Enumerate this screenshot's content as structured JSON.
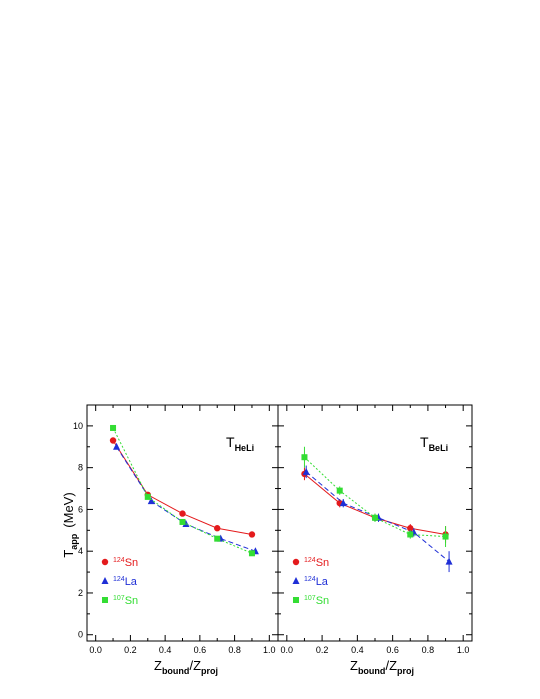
{
  "chart_data": [
    {
      "type": "line",
      "panel_label": {
        "main": "T",
        "sub": "HeLi"
      },
      "xlabel": {
        "main_a": "Z",
        "sub_a": "bound",
        "sep": "/",
        "main_b": "Z",
        "sub_b": "proj"
      },
      "ylabel": {
        "main": "T",
        "sub": "app",
        "rest": "(MeV)"
      },
      "xlim": [
        -0.05,
        1.05
      ],
      "ylim": [
        -0.3,
        11
      ],
      "xticks": [
        "0.0",
        "0.2",
        "0.4",
        "0.6",
        "0.8",
        "1.0"
      ],
      "yticks": [
        "0",
        "2",
        "4",
        "6",
        "8",
        "10"
      ],
      "series": [
        {
          "name_sup": "124",
          "name": "Sn",
          "color": "#e41a1c",
          "marker": "circle",
          "dash": "solid",
          "x": [
            0.1,
            0.3,
            0.5,
            0.7,
            0.9
          ],
          "y": [
            9.3,
            6.7,
            5.8,
            5.1,
            4.8
          ],
          "err": [
            0,
            0,
            0,
            0,
            0
          ]
        },
        {
          "name_sup": "124",
          "name": "La",
          "color": "#1f2fd6",
          "marker": "triangle",
          "dash": "dashed",
          "x": [
            0.12,
            0.32,
            0.52,
            0.72,
            0.92
          ],
          "y": [
            9.0,
            6.4,
            5.3,
            4.6,
            4.0
          ],
          "err": [
            0,
            0,
            0,
            0,
            0
          ]
        },
        {
          "name_sup": "107",
          "name": "Sn",
          "color": "#33dd33",
          "marker": "square",
          "dash": "dotted",
          "x": [
            0.1,
            0.3,
            0.5,
            0.7,
            0.9
          ],
          "y": [
            9.9,
            6.6,
            5.4,
            4.6,
            3.9
          ],
          "err": [
            0,
            0,
            0,
            0,
            0
          ]
        }
      ]
    },
    {
      "type": "line",
      "panel_label": {
        "main": "T",
        "sub": "BeLi"
      },
      "xlabel": {
        "main_a": "Z",
        "sub_a": "bound",
        "sep": "/",
        "main_b": "Z",
        "sub_b": "proj"
      },
      "xlim": [
        -0.05,
        1.05
      ],
      "ylim": [
        -0.3,
        11
      ],
      "xticks": [
        "0.0",
        "0.2",
        "0.4",
        "0.6",
        "0.8",
        "1.0"
      ],
      "series": [
        {
          "name_sup": "124",
          "name": "Sn",
          "color": "#e41a1c",
          "marker": "circle",
          "dash": "solid",
          "x": [
            0.1,
            0.3,
            0.5,
            0.7,
            0.9
          ],
          "y": [
            7.7,
            6.3,
            5.6,
            5.1,
            4.8
          ],
          "err": [
            0.3,
            0.2,
            0.2,
            0.2,
            0.4
          ]
        },
        {
          "name_sup": "124",
          "name": "La",
          "color": "#1f2fd6",
          "marker": "triangle",
          "dash": "dashed",
          "x": [
            0.11,
            0.32,
            0.52,
            0.72,
            0.92
          ],
          "y": [
            7.8,
            6.3,
            5.6,
            4.9,
            3.5
          ],
          "err": [
            0.3,
            0.2,
            0.2,
            0.2,
            0.5
          ]
        },
        {
          "name_sup": "107",
          "name": "Sn",
          "color": "#33dd33",
          "marker": "square",
          "dash": "dotted",
          "x": [
            0.1,
            0.3,
            0.5,
            0.7,
            0.9
          ],
          "y": [
            8.5,
            6.9,
            5.6,
            4.8,
            4.7
          ],
          "err": [
            0.5,
            0.2,
            0.2,
            0.2,
            0.5
          ]
        }
      ]
    }
  ]
}
